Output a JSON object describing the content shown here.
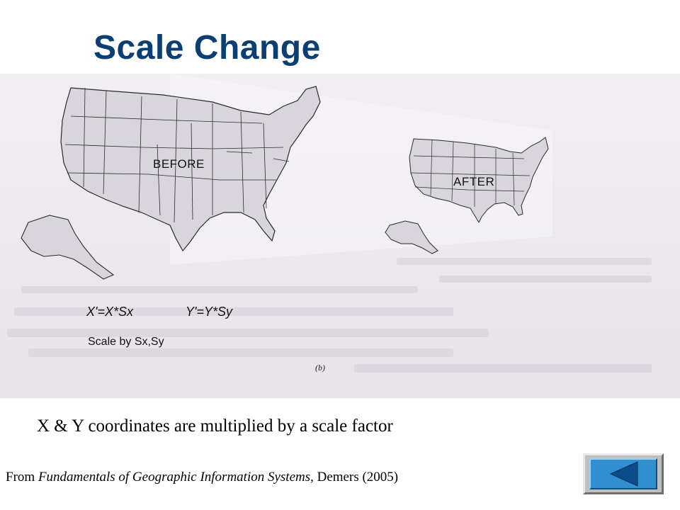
{
  "slide": {
    "title": "Scale Change"
  },
  "figure": {
    "before_label": "BEFORE",
    "after_label": "AFTER",
    "formula_x": "X'=X*Sx",
    "formula_y": "Y'=Y*Sy",
    "formula_note": "Scale by Sx,Sy",
    "panel_letter": "(b)"
  },
  "caption": "X & Y coordinates are multiplied by a scale factor",
  "citation": {
    "prefix": "From ",
    "book_title": "Fundamentals of Geographic Information Systems",
    "suffix": ", Demers (2005)"
  },
  "nav": {
    "back_icon": "triangle-left-icon",
    "button_color": "#2f8fd0"
  },
  "colors": {
    "title": "#0b3f73",
    "map_fill": "#d8d6dc",
    "map_stroke": "#2a2a2a"
  }
}
